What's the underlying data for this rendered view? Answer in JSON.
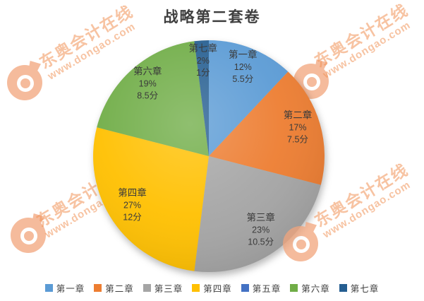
{
  "title": "战略第二套卷",
  "watermark": {
    "brand": "东奥会计在线",
    "url": "www.dongao.com",
    "color": "#F19256"
  },
  "chart_data": {
    "type": "pie",
    "title": "战略第二套卷",
    "categories": [
      "第一章",
      "第二章",
      "第三章",
      "第四章",
      "第五章",
      "第六章",
      "第七章"
    ],
    "series": [
      {
        "name": "percent",
        "values": [
          12,
          17,
          23,
          27,
          0,
          19,
          2
        ]
      },
      {
        "name": "points",
        "values": [
          5.5,
          7.5,
          10.5,
          12,
          0,
          8.5,
          1
        ]
      }
    ],
    "colors": [
      "#5B9BD5",
      "#ED7D31",
      "#A5A5A5",
      "#FFC000",
      "#4472C4",
      "#70AD47",
      "#255E91"
    ],
    "percent_suffix": "%",
    "points_suffix": "分",
    "start_angle": 0,
    "legend_position": "bottom",
    "label_color": "#3b3b3b"
  }
}
